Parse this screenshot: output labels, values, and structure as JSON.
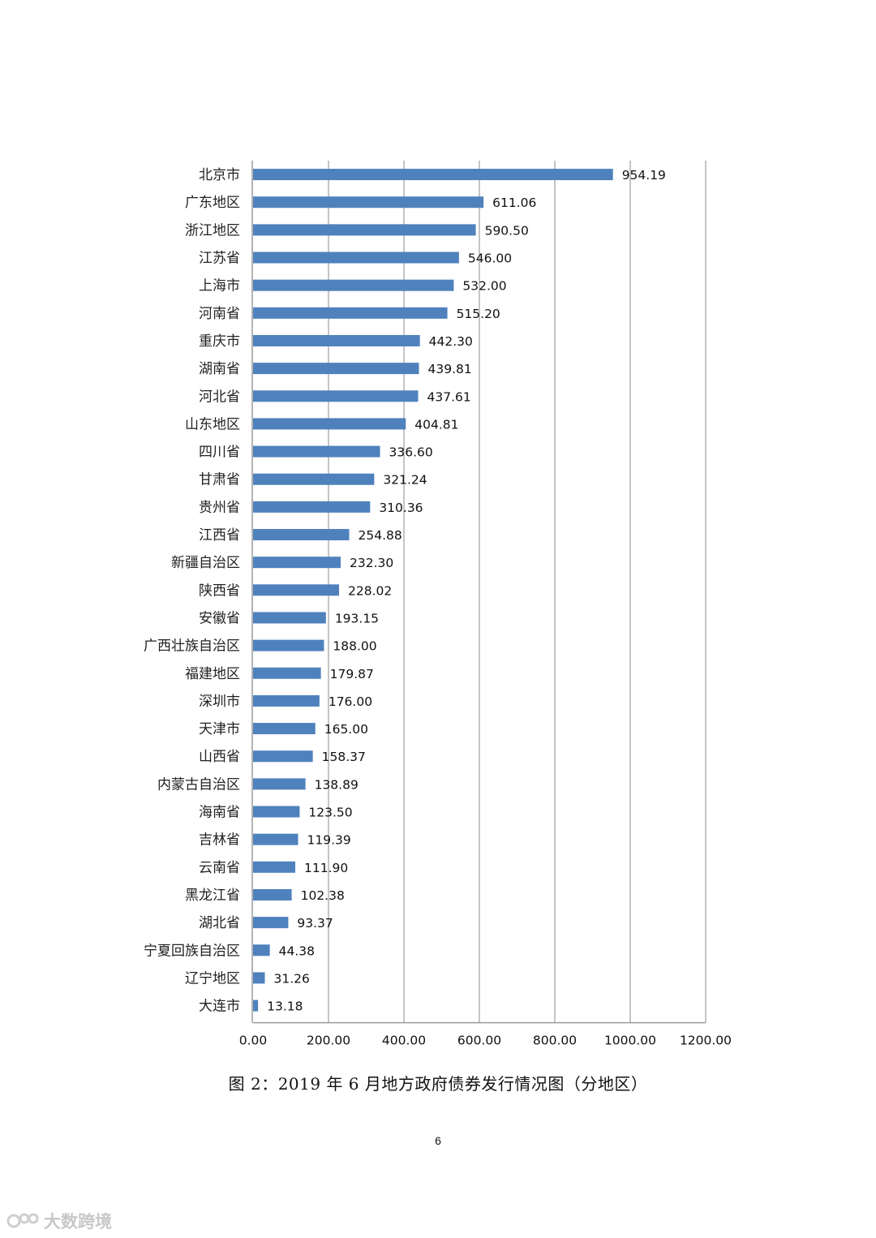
{
  "chart_data": {
    "type": "bar",
    "orientation": "horizontal",
    "categories": [
      "北京市",
      "广东地区",
      "浙江地区",
      "江苏省",
      "上海市",
      "河南省",
      "重庆市",
      "湖南省",
      "河北省",
      "山东地区",
      "四川省",
      "甘肃省",
      "贵州省",
      "江西省",
      "新疆自治区",
      "陕西省",
      "安徽省",
      "广西壮族自治区",
      "福建地区",
      "深圳市",
      "天津市",
      "山西省",
      "内蒙古自治区",
      "海南省",
      "吉林省",
      "云南省",
      "黑龙江省",
      "湖北省",
      "宁夏回族自治区",
      "辽宁地区",
      "大连市"
    ],
    "values": [
      954.19,
      611.06,
      590.5,
      546.0,
      532.0,
      515.2,
      442.3,
      439.81,
      437.61,
      404.81,
      336.6,
      321.24,
      310.36,
      254.88,
      232.3,
      228.02,
      193.15,
      188.0,
      179.87,
      176.0,
      165.0,
      158.37,
      138.89,
      123.5,
      119.39,
      111.9,
      102.38,
      93.37,
      44.38,
      31.26,
      13.18
    ],
    "value_labels": [
      "954.19",
      "611.06",
      "590.50",
      "546.00",
      "532.00",
      "515.20",
      "442.30",
      "439.81",
      "437.61",
      "404.81",
      "336.60",
      "321.24",
      "310.36",
      "254.88",
      "232.30",
      "228.02",
      "193.15",
      "188.00",
      "179.87",
      "176.00",
      "165.00",
      "158.37",
      "138.89",
      "123.50",
      "119.39",
      "111.90",
      "102.38",
      "93.37",
      "44.38",
      "31.26",
      "13.18"
    ],
    "xlim": [
      0,
      1200
    ],
    "x_ticks": [
      "0.00",
      "200.00",
      "400.00",
      "600.00",
      "800.00",
      "1000.00",
      "1200.00"
    ],
    "x_tick_values": [
      0,
      200,
      400,
      600,
      800,
      1000,
      1200
    ],
    "grid": "vertical",
    "legend": "none",
    "bar_color": "#4f81bd"
  },
  "caption": "图 2：2019 年 6 月地方政府债券发行情况图（分地区）",
  "page_number": "6",
  "watermark": {
    "text": "大数跨境",
    "icon": "logo-icon"
  }
}
